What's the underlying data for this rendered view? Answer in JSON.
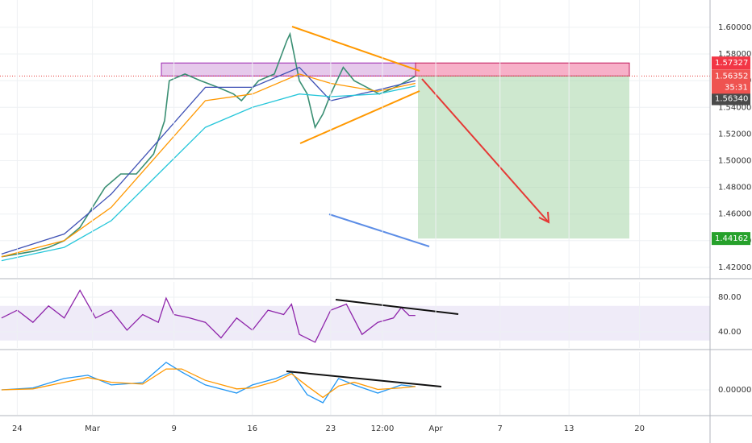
{
  "chart_data": [
    {
      "type": "line",
      "xlim": [
        -1.1,
        44.2
      ],
      "ylim": [
        1.4121,
        1.6205
      ],
      "yticks": [
        {
          "value": 1.42,
          "label": "1.42000"
        },
        {
          "value": 1.44,
          "label": "1.44000"
        },
        {
          "value": 1.46,
          "label": "1.46000"
        },
        {
          "value": 1.48,
          "label": "1.48000"
        },
        {
          "value": 1.5,
          "label": "1.50000"
        },
        {
          "value": 1.52,
          "label": "1.52000"
        },
        {
          "value": 1.54,
          "label": "1.54000"
        },
        {
          "value": 1.56,
          "label": "1.56000"
        },
        {
          "value": 1.58,
          "label": "1.58000"
        },
        {
          "value": 1.6,
          "label": "1.60000"
        }
      ],
      "grid": true,
      "series": [
        {
          "color": "#3a8f73",
          "x": [
            -1,
            0,
            1,
            2,
            3,
            4,
            4.8,
            5.6,
            6.6,
            7.6,
            8.7,
            9.4,
            9.7,
            10.7,
            11.7,
            12.8,
            13.8,
            14.3,
            15.4,
            16.4,
            17.2,
            17.4,
            18,
            18.5,
            19,
            19.5,
            20,
            20.8,
            21.5,
            22.3,
            23.1,
            24.1,
            24.9,
            25.4
          ],
          "values": [
            1.428,
            1.43,
            1.432,
            1.435,
            1.44,
            1.45,
            1.465,
            1.48,
            1.49,
            1.49,
            1.505,
            1.53,
            1.56,
            1.565,
            1.56,
            1.555,
            1.55,
            1.545,
            1.56,
            1.565,
            1.59,
            1.595,
            1.56,
            1.55,
            1.525,
            1.535,
            1.55,
            1.57,
            1.56,
            1.555,
            1.55,
            1.555,
            1.56,
            1.5635
          ]
        },
        {
          "color": "#3f51b5",
          "x": [
            -1,
            3,
            6,
            9,
            12,
            15,
            18,
            20,
            23,
            25.4
          ],
          "values": [
            1.43,
            1.445,
            1.475,
            1.515,
            1.555,
            1.555,
            1.57,
            1.545,
            1.553,
            1.56
          ]
        },
        {
          "color": "#ff9800",
          "x": [
            -1,
            3,
            6,
            9,
            12,
            15,
            18,
            20,
            23,
            25.4
          ],
          "values": [
            1.428,
            1.44,
            1.465,
            1.505,
            1.545,
            1.55,
            1.565,
            1.558,
            1.552,
            1.558
          ]
        },
        {
          "color": "#26c6da",
          "x": [
            -1,
            3,
            6,
            9,
            12,
            15,
            18,
            20,
            23,
            25.4
          ],
          "values": [
            1.425,
            1.435,
            1.455,
            1.49,
            1.525,
            1.54,
            1.55,
            1.548,
            1.55,
            1.556
          ]
        }
      ],
      "price_labels": [
        {
          "value": 1.57327,
          "label": "1.57327",
          "color": "#f23645"
        },
        {
          "value": 1.56352,
          "label": "1.56352",
          "color": "#ef5350"
        },
        {
          "value": 1.5634,
          "label": "1.56340",
          "color": "#4a4a4a"
        },
        {
          "value": 1.44162,
          "label": "1.44162",
          "color": "#26a12b"
        }
      ],
      "countdown": "35:31"
    },
    {
      "type": "line",
      "xlim": [
        -1.1,
        44.2
      ],
      "ylim": [
        21.4,
        97.7
      ],
      "yticks": [
        {
          "value": 40,
          "label": "40.00"
        },
        {
          "value": 80,
          "label": "80.00"
        }
      ],
      "band": [
        30,
        70
      ],
      "series": [
        {
          "color": "#8e24aa",
          "x": [
            -1,
            0,
            1,
            2,
            3,
            4,
            5,
            6,
            7,
            8,
            9,
            9.5,
            10,
            11,
            12,
            13,
            14,
            15,
            16,
            17,
            17.5,
            18,
            19,
            20,
            21,
            22,
            23,
            24,
            24.5,
            25,
            25.4
          ],
          "values": [
            56,
            65,
            51,
            70,
            56,
            88,
            56,
            65,
            42,
            60,
            51,
            79,
            60,
            56,
            51,
            33,
            56,
            42,
            65,
            60,
            72,
            37,
            28,
            65,
            72,
            37,
            51,
            56,
            68,
            59,
            59
          ]
        }
      ]
    },
    {
      "type": "line",
      "xlim": [
        -1.1,
        44.2
      ],
      "ylim": [
        -0.0132,
        0.02
      ],
      "yticks": [
        {
          "value": 0,
          "label": "0.00000"
        }
      ],
      "series": [
        {
          "color": "#2196f3",
          "x": [
            -1,
            1,
            3,
            4.5,
            6,
            8,
            9.5,
            10.5,
            12,
            14,
            15,
            16.5,
            17.5,
            18.5,
            19.5,
            20.5,
            21.5,
            23,
            24.5,
            25.4
          ],
          "values": [
            0,
            0.001,
            0.006,
            0.0077,
            0.0026,
            0.0038,
            0.0145,
            0.0094,
            0.0026,
            -0.0017,
            0.0026,
            0.006,
            0.0094,
            -0.0026,
            -0.0068,
            0.006,
            0.0026,
            -0.0017,
            0.0026,
            0.0017
          ]
        },
        {
          "color": "#ff9800",
          "x": [
            -1,
            1,
            3,
            4.5,
            6,
            8,
            9.5,
            10.5,
            12,
            14,
            15,
            16.5,
            17.5,
            18.5,
            19.5,
            20.5,
            21.5,
            23,
            24.5,
            25.4
          ],
          "values": [
            0,
            0.0005,
            0.004,
            0.0065,
            0.004,
            0.003,
            0.011,
            0.011,
            0.005,
            0.0005,
            0.001,
            0.0045,
            0.0085,
            0.002,
            -0.004,
            0.002,
            0.004,
            0.0002,
            0.001,
            0.0018
          ]
        }
      ],
      "xticks": [
        {
          "value": 0,
          "label": "24"
        },
        {
          "value": 4.8,
          "label": "Mar"
        },
        {
          "value": 10,
          "label": "9"
        },
        {
          "value": 15,
          "label": "16"
        },
        {
          "value": 20,
          "label": "23"
        },
        {
          "value": 23.3,
          "label": "12:00"
        },
        {
          "value": 26.7,
          "label": "Apr"
        },
        {
          "value": 30.8,
          "label": "7"
        },
        {
          "value": 35.2,
          "label": "13"
        },
        {
          "value": 39.7,
          "label": "20"
        }
      ]
    }
  ]
}
